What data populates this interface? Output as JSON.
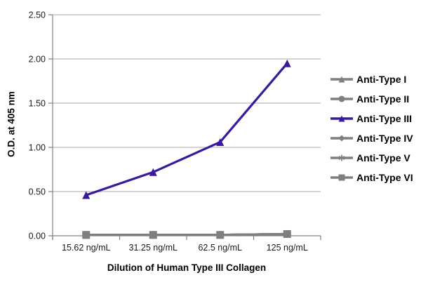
{
  "chart_data": {
    "type": "line",
    "categories": [
      "15.62 ng/mL",
      "31.25 ng/mL",
      "62.5 ng/mL",
      "125 ng/mL"
    ],
    "series": [
      {
        "name": "Anti-Type I",
        "marker": "triangle",
        "color": "#7f7f7f",
        "values": [
          0.01,
          0.01,
          0.01,
          0.02
        ]
      },
      {
        "name": "Anti-Type II",
        "marker": "circle",
        "color": "#7f7f7f",
        "values": [
          0.01,
          0.01,
          0.01,
          0.02
        ]
      },
      {
        "name": "Anti-Type III",
        "marker": "triangle",
        "color": "#3a1a9c",
        "values": [
          0.46,
          0.72,
          1.06,
          1.95
        ]
      },
      {
        "name": "Anti-Type IV",
        "marker": "diamond",
        "color": "#7f7f7f",
        "values": [
          0.01,
          0.01,
          0.01,
          0.02
        ]
      },
      {
        "name": "Anti-Type V",
        "marker": "asterisk",
        "color": "#7f7f7f",
        "values": [
          0.01,
          0.01,
          0.01,
          0.02
        ]
      },
      {
        "name": "Anti-Type VI",
        "marker": "square",
        "color": "#7f7f7f",
        "values": [
          0.01,
          0.01,
          0.01,
          0.02
        ]
      }
    ],
    "xlabel": "Dilution of Human Type III Collagen",
    "ylabel": "O.D. at 405 nm",
    "ylim": [
      0,
      2.5
    ],
    "ytick_step": 0.5,
    "ytick_labels": [
      "0.00",
      "0.50",
      "1.00",
      "1.50",
      "2.00",
      "2.50"
    ],
    "grid": true,
    "legend_position": "right",
    "colors": {
      "grid": "#a9a9a9",
      "axis": "#808080",
      "text": "#000000"
    }
  }
}
